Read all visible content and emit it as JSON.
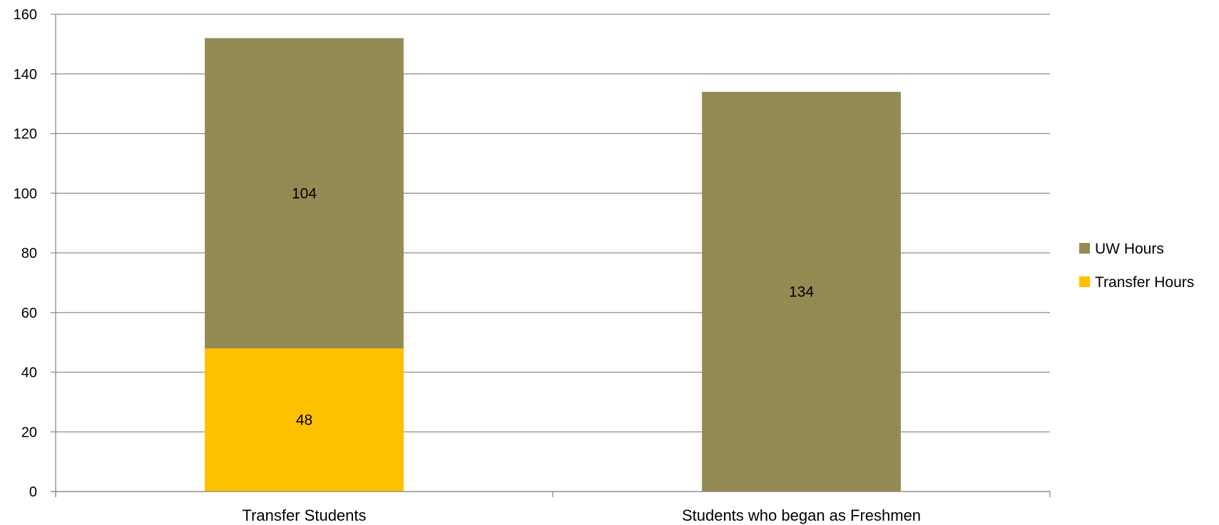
{
  "chart_data": {
    "type": "bar",
    "stacked": true,
    "categories": [
      "Transfer Students",
      "Students who began as Freshmen"
    ],
    "series": [
      {
        "name": "Transfer Hours",
        "values": [
          48,
          0
        ],
        "color": "#FFC000"
      },
      {
        "name": "UW Hours",
        "values": [
          104,
          134
        ],
        "color": "#948A54"
      }
    ],
    "legend_order": [
      "UW Hours",
      "Transfer Hours"
    ],
    "ylim": [
      0,
      160
    ],
    "yticks": [
      0,
      20,
      40,
      60,
      80,
      100,
      120,
      140,
      160
    ],
    "grid": true,
    "legend_position": "right"
  }
}
